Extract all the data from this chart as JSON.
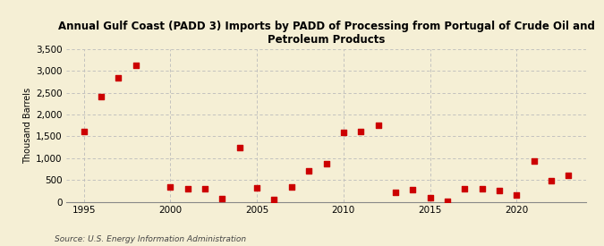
{
  "title": "Annual Gulf Coast (PADD 3) Imports by PADD of Processing from Portugal of Crude Oil and\nPetroleum Products",
  "ylabel": "Thousand Barrels",
  "source": "Source: U.S. Energy Information Administration",
  "years": [
    1995,
    1996,
    1997,
    1998,
    2000,
    2001,
    2002,
    2003,
    2004,
    2005,
    2006,
    2007,
    2008,
    2009,
    2010,
    2011,
    2012,
    2013,
    2014,
    2015,
    2016,
    2017,
    2018,
    2019,
    2020,
    2021,
    2022,
    2023
  ],
  "values": [
    1607,
    2420,
    2840,
    3140,
    340,
    290,
    290,
    75,
    1250,
    310,
    55,
    330,
    700,
    880,
    1600,
    1620,
    1760,
    215,
    280,
    100,
    20,
    295,
    290,
    250,
    155,
    930,
    490,
    600
  ],
  "marker_color": "#cc0000",
  "bg_color": "#f5efd5",
  "grid_color": "#bbbbbb",
  "ylim": [
    0,
    3500
  ],
  "yticks": [
    0,
    500,
    1000,
    1500,
    2000,
    2500,
    3000,
    3500
  ],
  "xlim": [
    1994,
    2024
  ],
  "xticks": [
    1995,
    2000,
    2005,
    2010,
    2015,
    2020
  ],
  "title_fontsize": 8.5,
  "ylabel_fontsize": 7,
  "tick_fontsize": 7.5,
  "source_fontsize": 6.5
}
